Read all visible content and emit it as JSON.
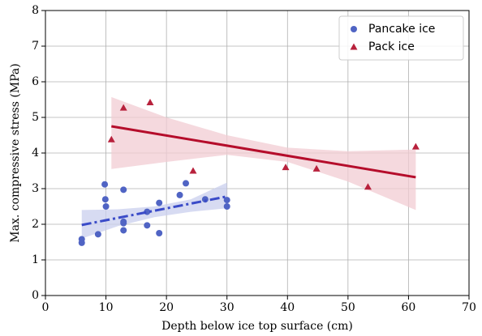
{
  "chart_data": {
    "type": "scatter",
    "x_label": "Depth below ice top surface (cm)",
    "y_label": "Max. compressive stress (MPa)",
    "xlim": [
      0,
      70
    ],
    "xticks": [
      0,
      10,
      20,
      30,
      40,
      50,
      60,
      70
    ],
    "ylim": [
      0,
      8
    ],
    "yticks": [
      0,
      1,
      2,
      3,
      4,
      5,
      6,
      7,
      8
    ],
    "grid": true,
    "legend": "upper right",
    "series": [
      {
        "name": "Pancake ice",
        "color": "#5064c4",
        "marker": "circle",
        "line_color": "#3a4bc8",
        "line_style": "dashdot",
        "band_color": "#c9cfee",
        "x": [
          6,
          6,
          8.7,
          9.8,
          9.9,
          10,
          12.9,
          12.9,
          12.9,
          12.9,
          16.8,
          16.8,
          18.8,
          18.8,
          22.2,
          23.2,
          26.4,
          30,
          30
        ],
        "values": [
          1.58,
          1.48,
          1.72,
          3.12,
          2.7,
          2.5,
          2.97,
          2.07,
          2.03,
          1.83,
          2.35,
          1.97,
          2.6,
          1.75,
          2.82,
          3.15,
          2.7,
          2.68,
          2.5
        ],
        "fit": {
          "x": [
            6,
            30
          ],
          "y": [
            1.98,
            2.78
          ]
        },
        "band": {
          "x": [
            6,
            12,
            18,
            24,
            30
          ],
          "lower": [
            1.6,
            1.95,
            2.2,
            2.35,
            2.45
          ],
          "upper": [
            2.4,
            2.42,
            2.5,
            2.7,
            3.17
          ]
        }
      },
      {
        "name": "Pack ice",
        "color": "#b8213c",
        "marker": "triangle",
        "line_color": "#b50d2b",
        "line_style": "solid",
        "band_color": "#f2ccd3",
        "x": [
          10.9,
          12.9,
          17.3,
          24.4,
          39.7,
          44.8,
          53.3,
          61.2
        ],
        "values": [
          4.38,
          5.27,
          5.42,
          3.5,
          3.6,
          3.56,
          3.05,
          4.18
        ],
        "fit": {
          "x": [
            10.9,
            61.2
          ],
          "y": [
            4.75,
            3.32
          ]
        },
        "band": {
          "x": [
            10.9,
            20,
            30,
            40,
            50,
            61.2
          ],
          "lower": [
            3.55,
            3.75,
            3.95,
            3.75,
            3.2,
            2.4
          ],
          "upper": [
            5.57,
            5.0,
            4.5,
            4.15,
            4.05,
            4.1
          ]
        }
      }
    ]
  }
}
